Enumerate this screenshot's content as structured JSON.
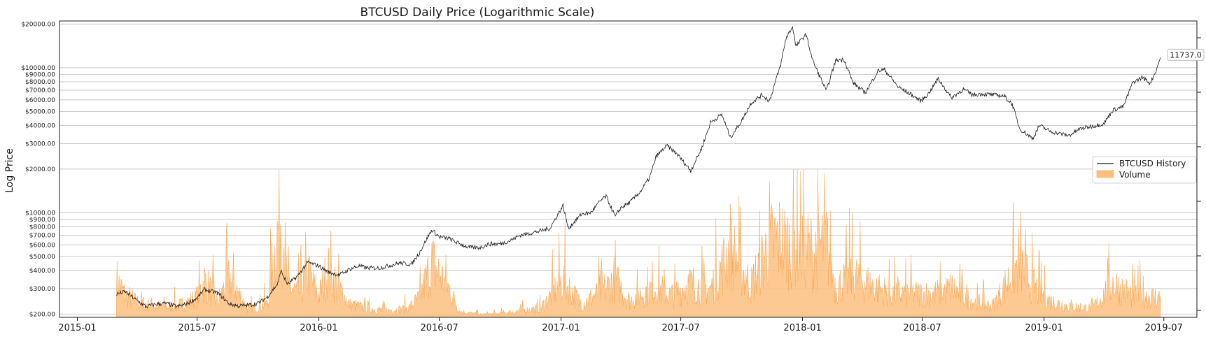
{
  "chart_data": {
    "type": "line",
    "title": "BTCUSD Daily Price (Logarithmic Scale)",
    "ylabel": "Log Price",
    "xlabel": "",
    "y_scale": "log",
    "ylim": [
      190,
      21000
    ],
    "xlim": [
      "2014-12-05",
      "2019-08-20"
    ],
    "grid": "horizontal at y ticks",
    "y_ticks": [
      200,
      300,
      400,
      500,
      600,
      700,
      800,
      900,
      1000,
      2000,
      3000,
      4000,
      5000,
      6000,
      7000,
      8000,
      9000,
      10000,
      20000
    ],
    "y_tick_labels": [
      "$200.00",
      "$300.00",
      "$400.00",
      "$500.00",
      "$600.00",
      "$700.00",
      "$800.00",
      "$900.00",
      "$1000.00",
      "$2000.00",
      "$3000.00",
      "$4000.00",
      "$5000.00",
      "$6000.00",
      "$7000.00",
      "$8000.00",
      "$9000.00",
      "$10000.00",
      "$20000.00"
    ],
    "x_ticks": [
      "2015-01",
      "2015-07",
      "2016-01",
      "2016-07",
      "2017-01",
      "2017-07",
      "2018-01",
      "2018-07",
      "2019-01",
      "2019-07"
    ],
    "legend": {
      "position": "center-right",
      "entries": [
        "BTCUSD History",
        "Volume"
      ]
    },
    "annotation": {
      "text": "11737.0",
      "x": "2019-06-26",
      "y": 11737.0
    },
    "colors": {
      "price_line": "#1a1a1a",
      "volume_fill": "#fdbf7f",
      "volume_edge": "#f9a54f",
      "grid": "#c8c8c8"
    },
    "series": [
      {
        "name": "BTCUSD History",
        "type": "line",
        "points": [
          [
            "2015-03-01",
            275
          ],
          [
            "2015-03-15",
            285
          ],
          [
            "2015-04-01",
            248
          ],
          [
            "2015-04-15",
            225
          ],
          [
            "2015-05-01",
            235
          ],
          [
            "2015-05-15",
            237
          ],
          [
            "2015-06-01",
            225
          ],
          [
            "2015-06-15",
            235
          ],
          [
            "2015-07-01",
            258
          ],
          [
            "2015-07-12",
            295
          ],
          [
            "2015-08-01",
            280
          ],
          [
            "2015-08-19",
            235
          ],
          [
            "2015-09-01",
            228
          ],
          [
            "2015-09-15",
            230
          ],
          [
            "2015-10-01",
            237
          ],
          [
            "2015-10-15",
            262
          ],
          [
            "2015-11-01",
            330
          ],
          [
            "2015-11-04",
            400
          ],
          [
            "2015-11-15",
            320
          ],
          [
            "2015-12-01",
            370
          ],
          [
            "2015-12-15",
            455
          ],
          [
            "2016-01-01",
            430
          ],
          [
            "2016-01-15",
            390
          ],
          [
            "2016-02-01",
            372
          ],
          [
            "2016-02-15",
            405
          ],
          [
            "2016-03-01",
            430
          ],
          [
            "2016-03-15",
            415
          ],
          [
            "2016-04-01",
            416
          ],
          [
            "2016-04-15",
            430
          ],
          [
            "2016-05-01",
            450
          ],
          [
            "2016-05-20",
            440
          ],
          [
            "2016-06-01",
            530
          ],
          [
            "2016-06-15",
            700
          ],
          [
            "2016-06-20",
            760
          ],
          [
            "2016-07-01",
            680
          ],
          [
            "2016-07-15",
            665
          ],
          [
            "2016-08-01",
            610
          ],
          [
            "2016-08-15",
            575
          ],
          [
            "2016-09-01",
            575
          ],
          [
            "2016-09-15",
            610
          ],
          [
            "2016-10-01",
            610
          ],
          [
            "2016-10-15",
            640
          ],
          [
            "2016-11-01",
            700
          ],
          [
            "2016-11-15",
            720
          ],
          [
            "2016-12-01",
            750
          ],
          [
            "2016-12-15",
            780
          ],
          [
            "2017-01-04",
            1120
          ],
          [
            "2017-01-12",
            780
          ],
          [
            "2017-02-01",
            980
          ],
          [
            "2017-02-15",
            1000
          ],
          [
            "2017-03-01",
            1200
          ],
          [
            "2017-03-10",
            1300
          ],
          [
            "2017-03-24",
            940
          ],
          [
            "2017-04-01",
            1080
          ],
          [
            "2017-04-15",
            1180
          ],
          [
            "2017-05-01",
            1400
          ],
          [
            "2017-05-15",
            1750
          ],
          [
            "2017-05-25",
            2450
          ],
          [
            "2017-06-10",
            2900
          ],
          [
            "2017-06-25",
            2550
          ],
          [
            "2017-07-16",
            1950
          ],
          [
            "2017-08-01",
            2750
          ],
          [
            "2017-08-15",
            4200
          ],
          [
            "2017-09-01",
            4750
          ],
          [
            "2017-09-14",
            3300
          ],
          [
            "2017-10-01",
            4300
          ],
          [
            "2017-10-15",
            5700
          ],
          [
            "2017-11-01",
            6500
          ],
          [
            "2017-11-12",
            5900
          ],
          [
            "2017-11-29",
            10500
          ],
          [
            "2017-12-07",
            16000
          ],
          [
            "2017-12-17",
            19200
          ],
          [
            "2017-12-22",
            14000
          ],
          [
            "2018-01-06",
            17000
          ],
          [
            "2018-01-17",
            11000
          ],
          [
            "2018-02-06",
            6900
          ],
          [
            "2018-02-20",
            11200
          ],
          [
            "2018-03-05",
            11400
          ],
          [
            "2018-03-18",
            7900
          ],
          [
            "2018-04-06",
            6700
          ],
          [
            "2018-04-25",
            9500
          ],
          [
            "2018-05-05",
            9700
          ],
          [
            "2018-05-25",
            7400
          ],
          [
            "2018-06-15",
            6500
          ],
          [
            "2018-06-29",
            5900
          ],
          [
            "2018-07-10",
            6600
          ],
          [
            "2018-07-25",
            8400
          ],
          [
            "2018-08-14",
            6200
          ],
          [
            "2018-09-01",
            7100
          ],
          [
            "2018-09-15",
            6500
          ],
          [
            "2018-10-01",
            6600
          ],
          [
            "2018-10-15",
            6500
          ],
          [
            "2018-11-01",
            6400
          ],
          [
            "2018-11-14",
            5600
          ],
          [
            "2018-11-25",
            3800
          ],
          [
            "2018-12-15",
            3250
          ],
          [
            "2018-12-25",
            4000
          ],
          [
            "2019-01-10",
            3650
          ],
          [
            "2019-02-07",
            3400
          ],
          [
            "2019-02-25",
            3800
          ],
          [
            "2019-03-15",
            3950
          ],
          [
            "2019-04-01",
            4100
          ],
          [
            "2019-04-15",
            5100
          ],
          [
            "2019-05-01",
            5400
          ],
          [
            "2019-05-15",
            7900
          ],
          [
            "2019-05-30",
            8600
          ],
          [
            "2019-06-10",
            7800
          ],
          [
            "2019-06-18",
            9200
          ],
          [
            "2019-06-26",
            11737
          ]
        ]
      },
      {
        "name": "Volume",
        "type": "area",
        "unit": "relative",
        "points": [
          [
            "2015-03-01",
            0.35
          ],
          [
            "2015-03-15",
            0.2
          ],
          [
            "2015-04-01",
            0.14
          ],
          [
            "2015-05-01",
            0.1
          ],
          [
            "2015-06-01",
            0.1
          ],
          [
            "2015-07-01",
            0.18
          ],
          [
            "2015-07-12",
            0.35
          ],
          [
            "2015-08-01",
            0.14
          ],
          [
            "2015-08-19",
            0.37
          ],
          [
            "2015-09-15",
            0.08
          ],
          [
            "2015-10-15",
            0.12
          ],
          [
            "2015-11-04",
            1.0
          ],
          [
            "2015-11-15",
            0.3
          ],
          [
            "2015-12-01",
            0.22
          ],
          [
            "2015-12-15",
            0.42
          ],
          [
            "2016-01-01",
            0.2
          ],
          [
            "2016-01-15",
            0.45
          ],
          [
            "2016-02-15",
            0.12
          ],
          [
            "2016-03-15",
            0.08
          ],
          [
            "2016-04-15",
            0.06
          ],
          [
            "2016-05-15",
            0.08
          ],
          [
            "2016-06-01",
            0.18
          ],
          [
            "2016-06-20",
            0.52
          ],
          [
            "2016-07-15",
            0.28
          ],
          [
            "2016-08-01",
            0.05
          ],
          [
            "2016-09-01",
            0.02
          ],
          [
            "2016-10-01",
            0.03
          ],
          [
            "2016-11-01",
            0.06
          ],
          [
            "2016-12-01",
            0.08
          ],
          [
            "2017-01-04",
            0.35
          ],
          [
            "2017-02-01",
            0.12
          ],
          [
            "2017-03-10",
            0.28
          ],
          [
            "2017-03-24",
            0.35
          ],
          [
            "2017-04-15",
            0.15
          ],
          [
            "2017-05-25",
            0.3
          ],
          [
            "2017-06-15",
            0.2
          ],
          [
            "2017-07-16",
            0.32
          ],
          [
            "2017-08-15",
            0.26
          ],
          [
            "2017-09-14",
            0.65
          ],
          [
            "2017-10-15",
            0.3
          ],
          [
            "2017-11-12",
            0.7
          ],
          [
            "2017-11-29",
            0.75
          ],
          [
            "2017-12-07",
            0.68
          ],
          [
            "2017-12-22",
            0.72
          ],
          [
            "2018-01-17",
            0.62
          ],
          [
            "2018-02-06",
            0.72
          ],
          [
            "2018-02-20",
            0.28
          ],
          [
            "2018-03-18",
            0.4
          ],
          [
            "2018-04-15",
            0.3
          ],
          [
            "2018-05-15",
            0.22
          ],
          [
            "2018-06-15",
            0.22
          ],
          [
            "2018-07-25",
            0.22
          ],
          [
            "2018-08-14",
            0.28
          ],
          [
            "2018-09-15",
            0.15
          ],
          [
            "2018-10-15",
            0.1
          ],
          [
            "2018-11-25",
            0.52
          ],
          [
            "2018-12-15",
            0.3
          ],
          [
            "2019-01-10",
            0.15
          ],
          [
            "2019-02-07",
            0.1
          ],
          [
            "2019-03-15",
            0.08
          ],
          [
            "2019-04-15",
            0.32
          ],
          [
            "2019-05-15",
            0.2
          ],
          [
            "2019-06-01",
            0.2
          ],
          [
            "2019-06-26",
            0.18
          ]
        ]
      }
    ]
  }
}
